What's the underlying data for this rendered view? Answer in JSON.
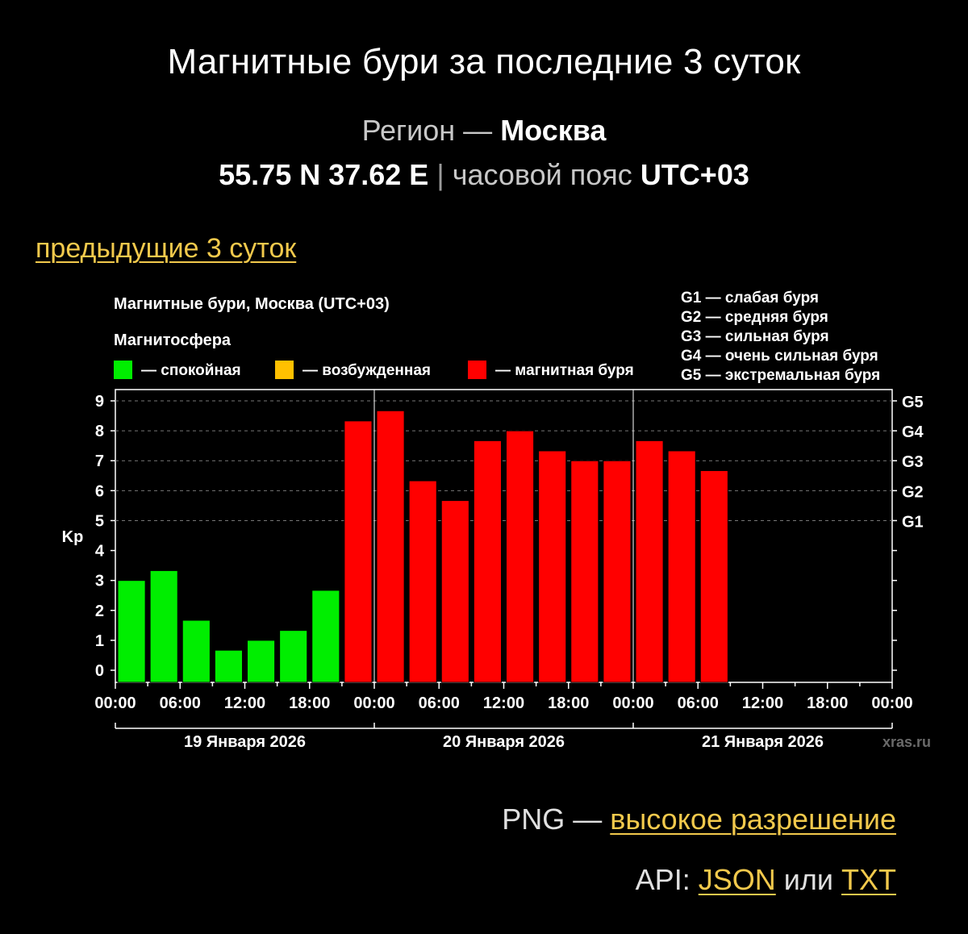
{
  "page": {
    "title": "Магнитные бури за последние 3 суток",
    "region_label": "Регион —",
    "region_name": "Москва",
    "coords": "55.75 N 37.62 E",
    "separator": "|",
    "timezone_label": "часовой пояс",
    "timezone": "UTC+03",
    "prev_link": "предыдущие 3 суток",
    "png_label": "PNG —",
    "png_link": "высокое разрешение",
    "api_label": "API:",
    "api_json": "JSON",
    "api_or": "или",
    "api_txt": "TXT"
  },
  "chart_data": {
    "type": "bar",
    "title": "Магнитные бури, Москва (UTC+03)",
    "legend_title": "Магнитосфера",
    "legend": [
      {
        "label": "— спокойная",
        "color": "#00ee00"
      },
      {
        "label": "— возбужденная",
        "color": "#ffc000"
      },
      {
        "label": "— магнитная буря",
        "color": "#ff0000"
      }
    ],
    "storm_scale": [
      "G1 — слабая буря",
      "G2 — средняя буря",
      "G3 — сильная буря",
      "G4 — очень сильная буря",
      "G5 — экстремальная буря"
    ],
    "ylabel": "Kp",
    "ylim": [
      0,
      9
    ],
    "yticks": [
      "0",
      "1",
      "2",
      "3",
      "4",
      "5",
      "6",
      "7",
      "8",
      "9"
    ],
    "right_ticks": [
      {
        "label": "G1",
        "kp": 5
      },
      {
        "label": "G2",
        "kp": 6
      },
      {
        "label": "G3",
        "kp": 7
      },
      {
        "label": "G4",
        "kp": 8
      },
      {
        "label": "G5",
        "kp": 9
      }
    ],
    "xticks": [
      "00:00",
      "06:00",
      "12:00",
      "18:00",
      "00:00",
      "06:00",
      "12:00",
      "18:00",
      "00:00",
      "06:00",
      "12:00",
      "18:00",
      "00:00"
    ],
    "days": [
      "19 Января 2026",
      "20 Января 2026",
      "21 Января 2026"
    ],
    "interval_hours": 3,
    "slots_total": 24,
    "values": [
      3.0,
      3.33,
      1.67,
      0.67,
      1.0,
      1.33,
      2.67,
      8.33,
      8.67,
      6.33,
      5.67,
      7.67,
      8.0,
      7.33,
      7.0,
      7.0,
      7.67,
      7.33,
      6.67
    ],
    "colors": {
      "quiet": "#00ee00",
      "storm": "#ff0000"
    },
    "grid": "dashed at Kp 5–9",
    "watermark": "xras.ru"
  }
}
